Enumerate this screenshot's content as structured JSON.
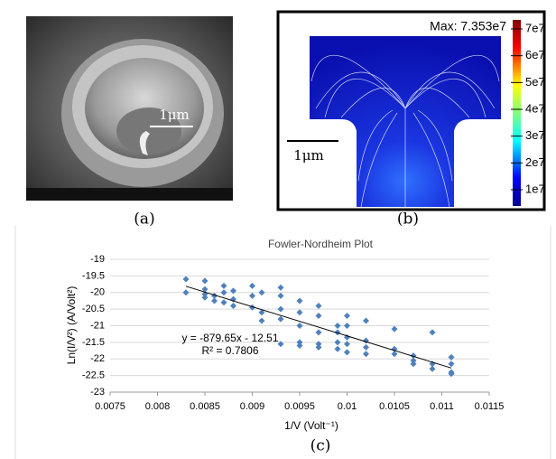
{
  "panels": {
    "a": {
      "scale_label": "1μm",
      "caption": "(a)"
    },
    "b": {
      "max_label": "Max: 7.353e7",
      "colorbar_labels": [
        "7e7",
        "6e7",
        "5e7",
        "4e7",
        "3e7",
        "2e7",
        "1e7"
      ],
      "scale_label": "1μm",
      "caption": "(b)"
    },
    "c": {
      "caption": "(c)"
    }
  },
  "chart_data": {
    "type": "scatter",
    "title": "Fowler-Nordheim Plot",
    "x_label": "1/V (Volt⁻¹)",
    "y_label": "Ln(I/V²) (A/Volt²)",
    "color": "#4f81bd",
    "x": [
      0.0083,
      0.0083,
      0.0085,
      0.0085,
      0.0085,
      0.0085,
      0.0086,
      0.0086,
      0.0087,
      0.0087,
      0.0087,
      0.0088,
      0.0088,
      0.0088,
      0.009,
      0.009,
      0.009,
      0.0091,
      0.0091,
      0.0091,
      0.0093,
      0.0093,
      0.0093,
      0.0093,
      0.0093,
      0.0095,
      0.0095,
      0.0095,
      0.0095,
      0.0095,
      0.0097,
      0.0097,
      0.0097,
      0.0097,
      0.0097,
      0.0099,
      0.0099,
      0.0099,
      0.0099,
      0.01,
      0.01,
      0.01,
      0.01,
      0.01,
      0.0102,
      0.0102,
      0.0102,
      0.0102,
      0.0105,
      0.0105,
      0.0105,
      0.0107,
      0.0107,
      0.0107,
      0.0109,
      0.0109,
      0.0109,
      0.0111,
      0.0111,
      0.0111,
      0.0111
    ],
    "values": [
      -19.6,
      -20.0,
      -19.65,
      -19.9,
      -20.05,
      -20.15,
      -20.1,
      -20.25,
      -19.8,
      -20.0,
      -20.3,
      -19.95,
      -20.2,
      -20.4,
      -19.8,
      -20.1,
      -20.45,
      -20.0,
      -20.6,
      -20.85,
      -19.85,
      -20.1,
      -20.5,
      -20.8,
      -21.55,
      -20.25,
      -20.6,
      -21.0,
      -21.5,
      -21.6,
      -20.4,
      -20.7,
      -21.2,
      -21.55,
      -21.65,
      -21.0,
      -21.2,
      -21.5,
      -21.7,
      -20.7,
      -21.0,
      -21.35,
      -21.55,
      -21.8,
      -20.85,
      -21.45,
      -21.65,
      -21.85,
      -21.1,
      -21.7,
      -21.85,
      -21.9,
      -22.05,
      -22.15,
      -21.2,
      -22.15,
      -22.3,
      -21.95,
      -22.15,
      -22.4,
      -22.45
    ],
    "trendline": {
      "equation": "y = -879.65x - 12.51",
      "r2_label": "R² = 0.7806",
      "slope": -879.65,
      "intercept": -12.51
    },
    "xlim": [
      0.0075,
      0.0115
    ],
    "xticks": [
      0.0075,
      0.008,
      0.0085,
      0.009,
      0.0095,
      0.01,
      0.0105,
      0.011,
      0.0115
    ],
    "ylim": [
      -23,
      -19
    ],
    "yticks": [
      -23,
      -22.5,
      -22,
      -21.5,
      -21,
      -20.5,
      -20,
      -19.5,
      -19
    ],
    "grid": true
  }
}
